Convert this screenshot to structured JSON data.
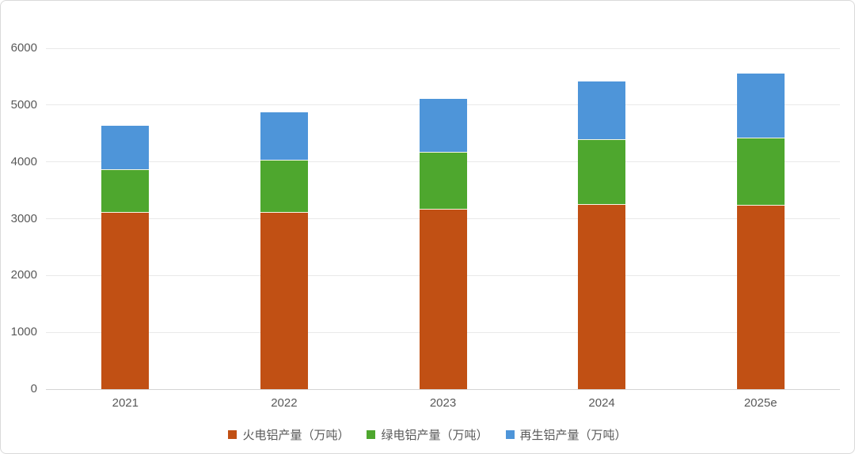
{
  "chart_data": {
    "type": "bar",
    "stacked": true,
    "title": "",
    "xlabel": "",
    "ylabel": "",
    "categories": [
      "2021",
      "2022",
      "2023",
      "2024",
      "2025e"
    ],
    "series": [
      {
        "name": "火电铝产量（万吨）",
        "color": "#C15014",
        "values": [
          3110,
          3100,
          3160,
          3240,
          3230
        ]
      },
      {
        "name": "绿电铝产量（万吨）",
        "color": "#4EA72E",
        "values": [
          740,
          920,
          1000,
          1150,
          1190
        ]
      },
      {
        "name": "再生铝产量（万吨）",
        "color": "#4E95D9",
        "values": [
          790,
          850,
          950,
          1030,
          1140
        ]
      }
    ],
    "ylim": [
      0,
      6000
    ],
    "ytick_step": 1000,
    "ytick_labels": [
      "0",
      "1000",
      "2000",
      "3000",
      "4000",
      "5000",
      "6000"
    ],
    "grid": true,
    "legend_position": "bottom",
    "axis_text_color": "#595959",
    "gridline_color": "#e9e9e9",
    "baseline_color": "#d4d4d4"
  }
}
